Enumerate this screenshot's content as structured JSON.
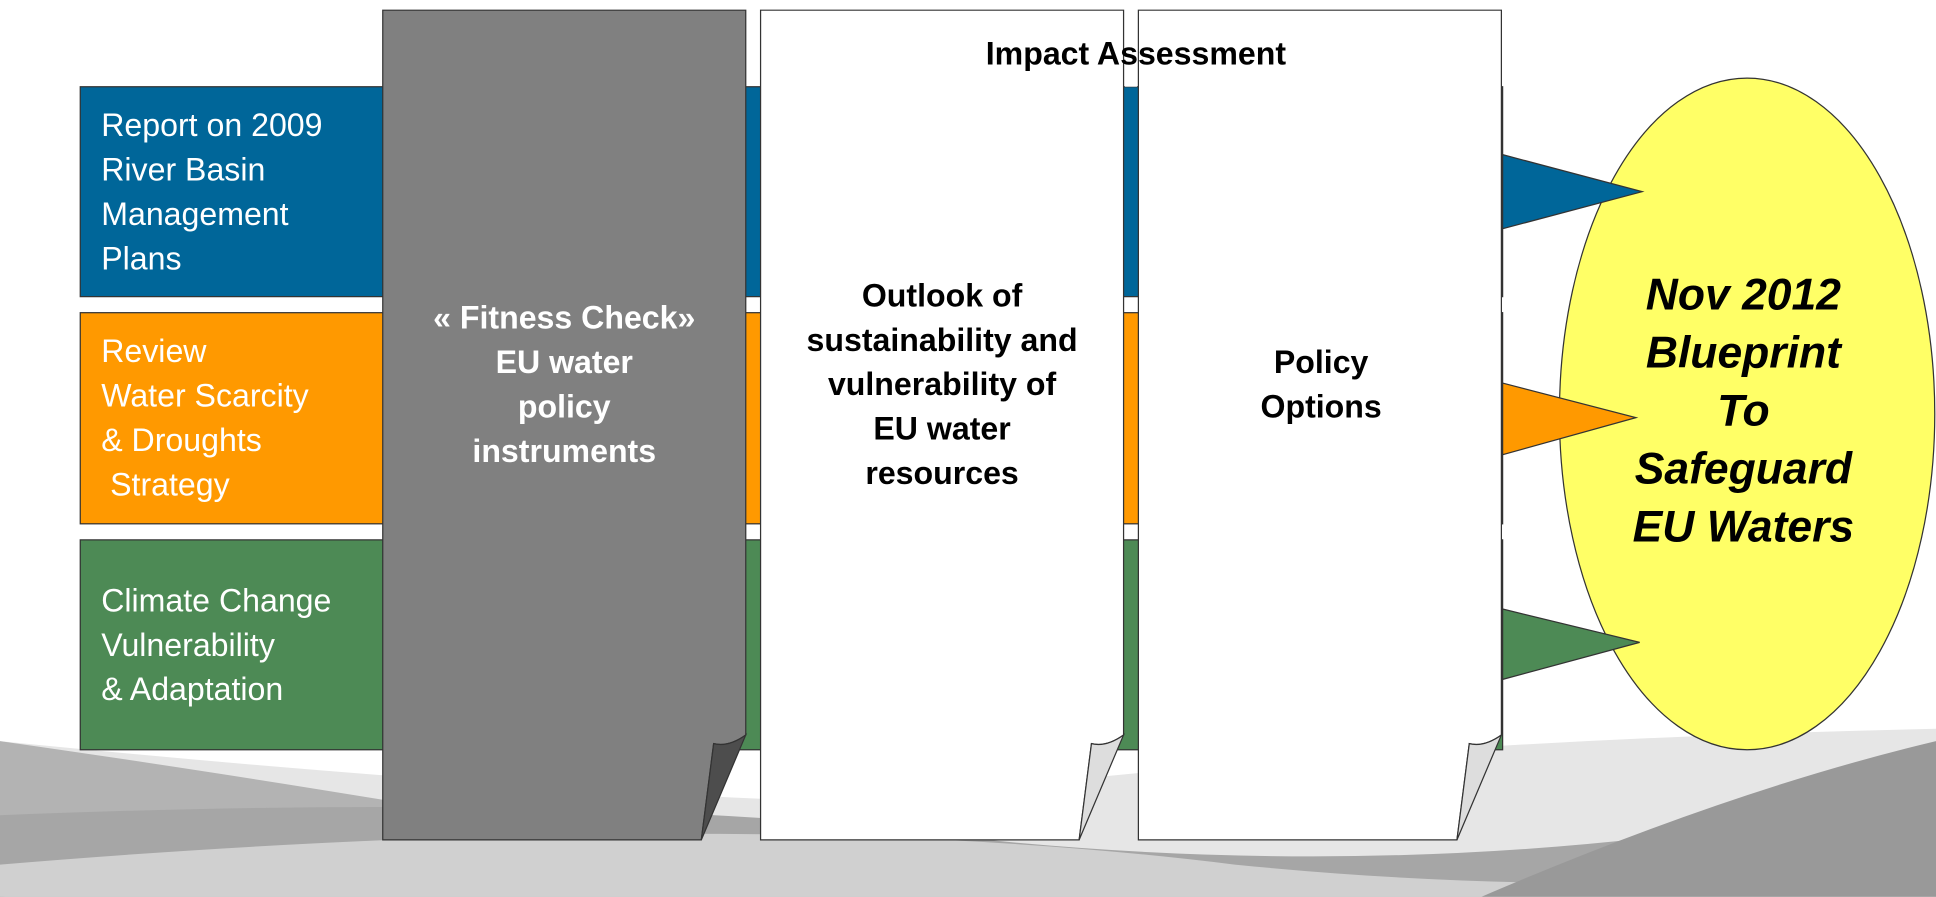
{
  "streams": [
    {
      "lines": [
        "Report on 2009",
        "River Basin",
        "Management",
        "Plans"
      ]
    },
    {
      "lines": [
        "Review",
        "Water Scarcity",
        "& Droughts",
        " Strategy"
      ]
    },
    {
      "lines": [
        "Climate Change",
        "Vulnerability",
        "& Adaptation"
      ]
    }
  ],
  "fitness_check": {
    "lines": [
      "« Fitness Check»",
      "EU water",
      "policy",
      "instruments"
    ]
  },
  "impact_assessment": {
    "title": "Impact Assessment",
    "outlook": {
      "lines": [
        "Outlook of",
        "sustainability and",
        "vulnerability of",
        "EU water",
        "resources"
      ]
    },
    "policy_options": {
      "lines": [
        "Policy",
        "Options"
      ]
    }
  },
  "blueprint": {
    "lines": [
      "Nov 2012",
      "Blueprint",
      "To",
      "Safeguard",
      "EU Waters"
    ]
  }
}
